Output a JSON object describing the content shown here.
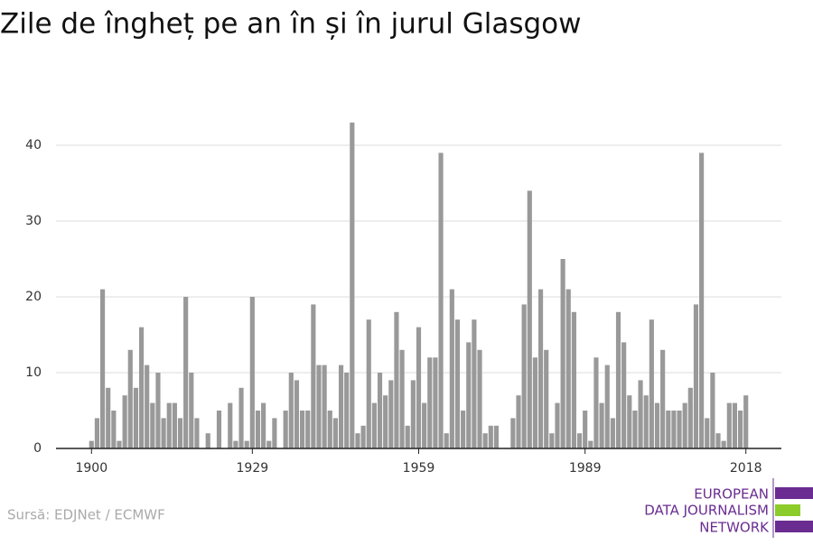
{
  "chart_data": {
    "type": "bar",
    "title": "Zile de îngheț pe an în și în jurul Glasgow",
    "source": "Sursă: EDJNet / ECMWF",
    "logo": [
      "EUROPEAN",
      "DATA JOURNALISM",
      "NETWORK"
    ],
    "color": "#999999",
    "x": [
      1900,
      1901,
      1902,
      1903,
      1904,
      1905,
      1906,
      1907,
      1908,
      1909,
      1910,
      1911,
      1912,
      1913,
      1914,
      1915,
      1916,
      1917,
      1918,
      1919,
      1920,
      1921,
      1922,
      1923,
      1924,
      1925,
      1926,
      1927,
      1928,
      1929,
      1930,
      1931,
      1932,
      1933,
      1934,
      1935,
      1936,
      1937,
      1938,
      1939,
      1940,
      1941,
      1942,
      1943,
      1944,
      1945,
      1946,
      1947,
      1948,
      1949,
      1950,
      1951,
      1952,
      1953,
      1954,
      1955,
      1956,
      1957,
      1958,
      1959,
      1960,
      1961,
      1962,
      1963,
      1964,
      1965,
      1966,
      1967,
      1968,
      1969,
      1970,
      1971,
      1972,
      1973,
      1974,
      1975,
      1976,
      1977,
      1978,
      1979,
      1980,
      1981,
      1982,
      1983,
      1984,
      1985,
      1986,
      1987,
      1988,
      1989,
      1990,
      1991,
      1992,
      1993,
      1994,
      1995,
      1996,
      1997,
      1998,
      1999,
      2000,
      2001,
      2002,
      2003,
      2004,
      2005,
      2006,
      2007,
      2008,
      2009,
      2010,
      2011,
      2012,
      2013,
      2014,
      2015,
      2016,
      2017,
      2018
    ],
    "values": [
      1,
      4,
      21,
      8,
      5,
      1,
      7,
      13,
      8,
      16,
      11,
      6,
      10,
      4,
      6,
      6,
      4,
      20,
      10,
      4,
      0,
      2,
      0,
      5,
      0,
      6,
      1,
      8,
      1,
      20,
      5,
      6,
      1,
      4,
      0,
      5,
      10,
      9,
      5,
      5,
      19,
      11,
      11,
      5,
      4,
      11,
      10,
      43,
      2,
      3,
      17,
      6,
      10,
      7,
      9,
      18,
      13,
      3,
      9,
      16,
      6,
      12,
      12,
      39,
      2,
      21,
      17,
      5,
      14,
      17,
      13,
      2,
      3,
      3,
      0,
      0,
      4,
      7,
      19,
      34,
      12,
      21,
      13,
      2,
      6,
      25,
      21,
      18,
      2,
      5,
      1,
      12,
      6,
      11,
      4,
      18,
      14,
      7,
      5,
      9,
      7,
      17,
      6,
      13,
      5,
      5,
      5,
      6,
      8,
      19,
      39,
      4,
      10,
      2,
      1,
      6,
      6,
      5,
      7
    ],
    "xlim": [
      1893.6,
      2024.4
    ],
    "xticks": [
      1900,
      1929,
      1959,
      1989,
      2018
    ],
    "ylim": [
      0,
      44
    ],
    "yticks": [
      0,
      10,
      20,
      30,
      40
    ],
    "grid": true
  }
}
